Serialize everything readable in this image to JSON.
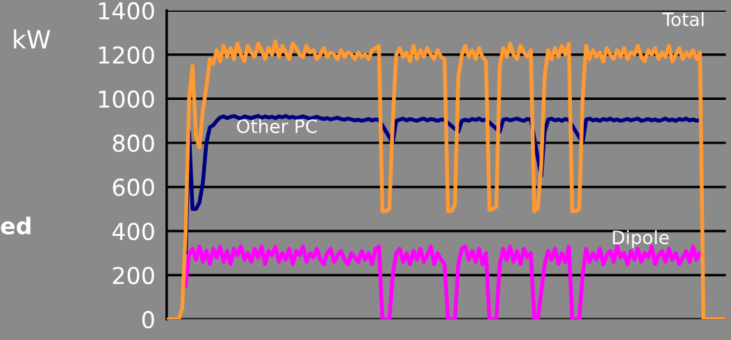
{
  "chart_data": {
    "type": "line",
    "ylabel": "kW",
    "categories": [
      null,
      null,
      null,
      null,
      null,
      null,
      null,
      null,
      null,
      null,
      null,
      null,
      null,
      null,
      null,
      null,
      null,
      null,
      null,
      null,
      null,
      null,
      null,
      null,
      null,
      null,
      null,
      null,
      null,
      null,
      null,
      null,
      null,
      null,
      null,
      null,
      null,
      null,
      null,
      null,
      null,
      null,
      null,
      null,
      null,
      null,
      null,
      null,
      null,
      null,
      null,
      null,
      null,
      null,
      null,
      null,
      null,
      null,
      null,
      null,
      null,
      null,
      null,
      null,
      null,
      null,
      null,
      null,
      null,
      null,
      null,
      null,
      null,
      null,
      null,
      null,
      null,
      null,
      null,
      null,
      null,
      null,
      null,
      null,
      null,
      null,
      null,
      null,
      null,
      null,
      null,
      null,
      null,
      null,
      null,
      null,
      null,
      null,
      null,
      null,
      null,
      null,
      null,
      null,
      null,
      null,
      null,
      null,
      null,
      null,
      null,
      null,
      null,
      null,
      null,
      null,
      null,
      null,
      null,
      null,
      null,
      null,
      null,
      null,
      null,
      null,
      null,
      null,
      null,
      null,
      null,
      null,
      null,
      null,
      null,
      null,
      null,
      null,
      null,
      null,
      null,
      null,
      null,
      null,
      null,
      null,
      null,
      null,
      null,
      null,
      null,
      null,
      null,
      null,
      null,
      null,
      null,
      null,
      null,
      null,
      null,
      null
    ],
    "series": [
      {
        "name": "Total",
        "color": "#ff9933",
        "values": [
          0,
          0,
          0,
          0,
          50,
          400,
          1000,
          1150,
          830,
          780,
          950,
          1050,
          1180,
          1160,
          1220,
          1170,
          1240,
          1190,
          1230,
          1180,
          1250,
          1200,
          1170,
          1240,
          1210,
          1190,
          1250,
          1220,
          1180,
          1230,
          1200,
          1260,
          1190,
          1240,
          1210,
          1180,
          1250,
          1230,
          1200,
          1190,
          1240,
          1210,
          1220,
          1180,
          1200,
          1230,
          1190,
          1210,
          1200,
          1180,
          1220,
          1190,
          1210,
          1200,
          1180,
          1210,
          1190,
          1200,
          1180,
          1220,
          1230,
          1240,
          490,
          490,
          500,
          900,
          1200,
          1230,
          1190,
          1210,
          1170,
          1240,
          1180,
          1220,
          1190,
          1230,
          1200,
          1180,
          1220,
          1190,
          1180,
          490,
          490,
          520,
          1100,
          1200,
          1240,
          1190,
          1220,
          1180,
          1230,
          1190,
          1170,
          495,
          500,
          510,
          1150,
          1230,
          1190,
          1250,
          1200,
          1180,
          1240,
          1210,
          1190,
          1220,
          490,
          500,
          700,
          1100,
          1220,
          1180,
          1230,
          1190,
          1240,
          1200,
          1250,
          490,
          490,
          500,
          1000,
          1240,
          1180,
          1220,
          1190,
          1210,
          1170,
          1230,
          1200,
          1180,
          1220,
          1190,
          1230,
          1180,
          1210,
          1200,
          1240,
          1190,
          1170,
          1220,
          1200,
          1230,
          1180,
          1210,
          1190,
          1240,
          1170,
          1200,
          1230,
          1180,
          1210,
          1190,
          1220,
          1180,
          1210,
          0,
          0,
          0,
          0,
          0,
          0,
          0
        ]
      },
      {
        "name": "Other PC",
        "color": "#000080",
        "values": [
          null,
          null,
          null,
          null,
          null,
          300,
          850,
          500,
          500,
          530,
          620,
          800,
          870,
          880,
          900,
          915,
          920,
          912,
          918,
          922,
          915,
          910,
          920,
          916,
          912,
          918,
          922,
          914,
          920,
          915,
          918,
          912,
          920,
          916,
          922,
          914,
          918,
          912,
          916,
          920,
          915,
          910,
          914,
          918,
          912,
          908,
          912,
          906,
          910,
          914,
          908,
          905,
          910,
          906,
          902,
          905,
          900,
          904,
          908,
          902,
          906,
          905,
          null,
          null,
          null,
          800,
          900,
          905,
          910,
          902,
          908,
          904,
          900,
          906,
          910,
          902,
          908,
          905,
          900,
          906,
          904,
          null,
          null,
          null,
          850,
          900,
          905,
          900,
          908,
          904,
          910,
          902,
          906,
          null,
          null,
          null,
          850,
          905,
          908,
          902,
          906,
          910,
          904,
          900,
          908,
          905,
          null,
          null,
          650,
          850,
          905,
          910,
          902,
          906,
          900,
          908,
          904,
          null,
          null,
          null,
          800,
          905,
          910,
          902,
          906,
          900,
          908,
          904,
          910,
          902,
          906,
          900,
          904,
          908,
          902,
          906,
          910,
          900,
          904,
          908,
          902,
          906,
          900,
          904,
          910,
          902,
          906,
          900,
          908,
          904,
          910,
          902,
          906,
          900,
          904,
          null,
          null,
          null,
          null,
          null,
          null,
          null
        ]
      },
      {
        "name": "Dipole",
        "color": "#ff00ff",
        "values": [
          null,
          null,
          null,
          null,
          null,
          150,
          300,
          320,
          270,
          330,
          260,
          310,
          250,
          320,
          280,
          330,
          260,
          310,
          250,
          320,
          290,
          330,
          270,
          300,
          260,
          320,
          280,
          330,
          250,
          310,
          290,
          330,
          260,
          300,
          270,
          320,
          250,
          310,
          290,
          330,
          260,
          300,
          280,
          320,
          270,
          250,
          300,
          320,
          260,
          290,
          310,
          270,
          250,
          300,
          280,
          260,
          310,
          270,
          300,
          250,
          320,
          330,
          0,
          0,
          0,
          200,
          300,
          320,
          260,
          300,
          250,
          310,
          270,
          320,
          260,
          290,
          330,
          250,
          300,
          270,
          250,
          0,
          0,
          0,
          250,
          320,
          330,
          270,
          310,
          260,
          320,
          250,
          300,
          0,
          0,
          0,
          250,
          320,
          270,
          330,
          260,
          310,
          250,
          320,
          280,
          300,
          0,
          0,
          120,
          250,
          310,
          270,
          320,
          250,
          300,
          260,
          330,
          0,
          0,
          0,
          200,
          320,
          260,
          300,
          270,
          320,
          250,
          290,
          310,
          260,
          330,
          280,
          300,
          250,
          310,
          270,
          320,
          260,
          300,
          280,
          330,
          250,
          290,
          310,
          260,
          320,
          270,
          300,
          250,
          280,
          310,
          260,
          330,
          270,
          300,
          null,
          null,
          null,
          null,
          null,
          null,
          null
        ]
      }
    ],
    "ylim": [
      0,
      1400
    ],
    "yticks": [
      0,
      200,
      400,
      600,
      800,
      1000,
      1200,
      1400
    ],
    "grid": "y",
    "tick_labels": "y",
    "annotations": [
      "ed"
    ]
  }
}
